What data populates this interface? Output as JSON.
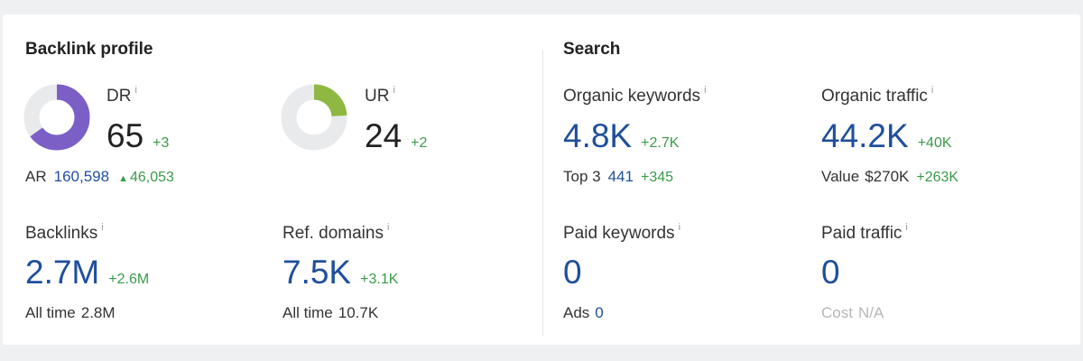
{
  "info_icon": "i",
  "backlink_profile": {
    "title": "Backlink profile",
    "dr": {
      "label": "DR",
      "value": 65,
      "change": "+3",
      "color": "#7b5fc7"
    },
    "ur": {
      "label": "UR",
      "value": 24,
      "change": "+2",
      "color": "#8fb842"
    },
    "ar": {
      "label": "AR",
      "value": "160,598",
      "change": "46,053"
    },
    "backlinks": {
      "label": "Backlinks",
      "value": "2.7M",
      "change": "+2.6M",
      "sub_label": "All time",
      "sub_value": "2.8M"
    },
    "ref_domains": {
      "label": "Ref. domains",
      "value": "7.5K",
      "change": "+3.1K",
      "sub_label": "All time",
      "sub_value": "10.7K"
    }
  },
  "search": {
    "title": "Search",
    "organic_keywords": {
      "label": "Organic keywords",
      "value": "4.8K",
      "change": "+2.7K",
      "sub_label": "Top 3",
      "sub_value": "441",
      "sub_change": "+345"
    },
    "organic_traffic": {
      "label": "Organic traffic",
      "value": "44.2K",
      "change": "+40K",
      "sub_label": "Value",
      "sub_value": "$270K",
      "sub_change": "+263K"
    },
    "paid_keywords": {
      "label": "Paid keywords",
      "value": "0",
      "sub_label": "Ads",
      "sub_value": "0"
    },
    "paid_traffic": {
      "label": "Paid traffic",
      "value": "0",
      "sub_label": "Cost",
      "sub_value": "N/A"
    }
  }
}
